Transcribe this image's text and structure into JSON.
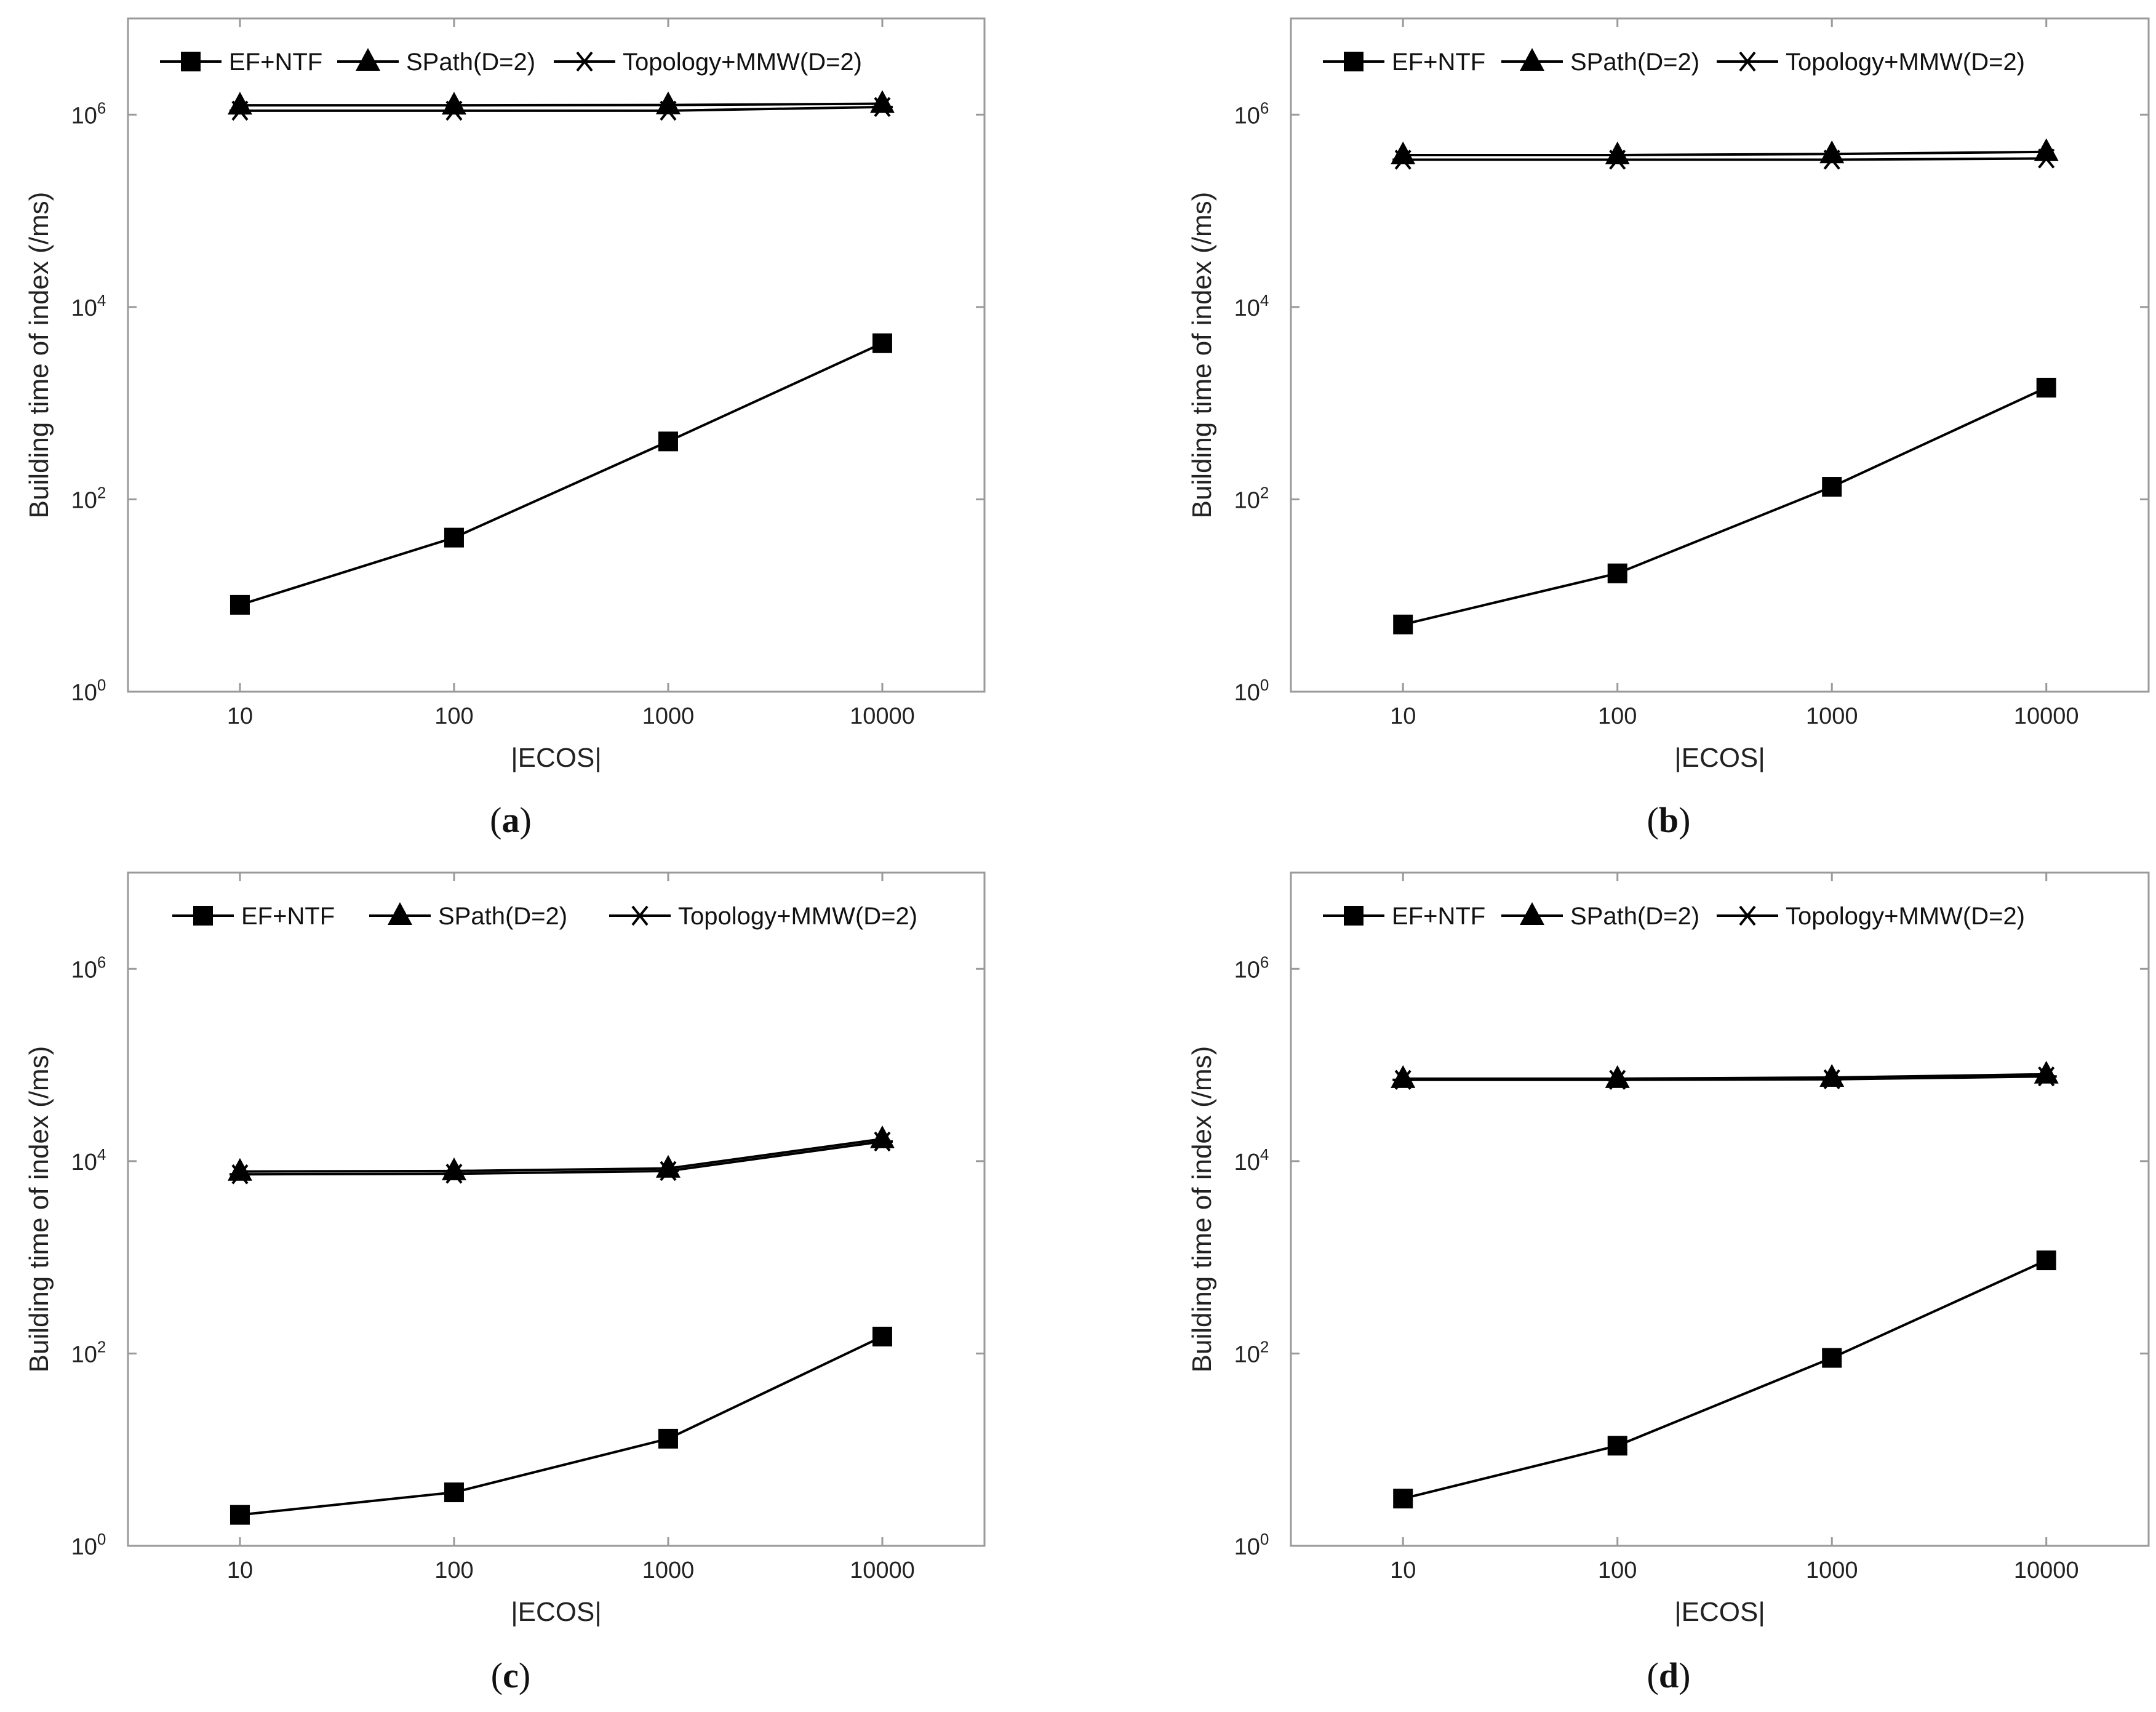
{
  "figure": {
    "accent_color": "#000000",
    "frame_color": "#9a9a9a"
  },
  "chart_data": [
    {
      "panel": "a",
      "type": "line",
      "xscale": "log",
      "yscale": "log",
      "categories": [
        "10",
        "100",
        "1000",
        "10000"
      ],
      "x": [
        10,
        100,
        1000,
        10000
      ],
      "xlim": [
        3,
        30000
      ],
      "ylim": [
        1,
        10000000
      ],
      "xlabel": "|ECOS|",
      "ylabel": "Building time of index (/ms)",
      "ytick_base": "10",
      "ytick_exponents": [
        "0",
        "2",
        "4",
        "6"
      ],
      "legend_position": "top",
      "series": [
        {
          "name": "EF+NTF",
          "marker": "square",
          "values": [
            8,
            40,
            400,
            4200
          ]
        },
        {
          "name": "SPath(D=2)",
          "marker": "triangle",
          "values": [
            1250000,
            1250000,
            1260000,
            1300000
          ]
        },
        {
          "name": "Topology+MMW(D=2)",
          "marker": "star",
          "values": [
            1100000,
            1100000,
            1100000,
            1200000
          ]
        }
      ],
      "caption_open": "(",
      "caption_letter": "a",
      "caption_close": ")"
    },
    {
      "panel": "b",
      "type": "line",
      "xscale": "log",
      "yscale": "log",
      "categories": [
        "10",
        "100",
        "1000",
        "10000"
      ],
      "x": [
        10,
        100,
        1000,
        10000
      ],
      "xlim": [
        3,
        30000
      ],
      "ylim": [
        1,
        10000000
      ],
      "xlabel": "|ECOS|",
      "ylabel": "Building time of index (/ms)",
      "ytick_base": "10",
      "ytick_exponents": [
        "0",
        "2",
        "4",
        "6"
      ],
      "legend_position": "top",
      "series": [
        {
          "name": "EF+NTF",
          "marker": "square",
          "values": [
            5,
            17,
            135,
            1450
          ]
        },
        {
          "name": "SPath(D=2)",
          "marker": "triangle",
          "values": [
            380000,
            380000,
            390000,
            410000
          ]
        },
        {
          "name": "Topology+MMW(D=2)",
          "marker": "star",
          "values": [
            340000,
            340000,
            340000,
            350000
          ]
        }
      ],
      "caption_open": "(",
      "caption_letter": "b",
      "caption_close": ")"
    },
    {
      "panel": "c",
      "type": "line",
      "xscale": "log",
      "yscale": "log",
      "categories": [
        "10",
        "100",
        "1000",
        "10000"
      ],
      "x": [
        10,
        100,
        1000,
        10000
      ],
      "xlim": [
        3,
        30000
      ],
      "ylim": [
        1,
        10000000
      ],
      "xlabel": "|ECOS|",
      "ylabel": "Building time of index (/ms)",
      "ytick_base": "10",
      "ytick_exponents": [
        "0",
        "2",
        "4",
        "6"
      ],
      "legend_position": "top",
      "series": [
        {
          "name": "EF+NTF",
          "marker": "square",
          "values": [
            2.1,
            3.6,
            13,
            150
          ]
        },
        {
          "name": "SPath(D=2)",
          "marker": "triangle",
          "values": [
            7800,
            7900,
            8400,
            17000
          ]
        },
        {
          "name": "Topology+MMW(D=2)",
          "marker": "star",
          "values": [
            7300,
            7400,
            7900,
            16000
          ]
        }
      ],
      "caption_open": "(",
      "caption_letter": "c",
      "caption_close": ")"
    },
    {
      "panel": "d",
      "type": "line",
      "xscale": "log",
      "yscale": "log",
      "categories": [
        "10",
        "100",
        "1000",
        "10000"
      ],
      "x": [
        10,
        100,
        1000,
        10000
      ],
      "xlim": [
        3,
        30000
      ],
      "ylim": [
        1,
        10000000
      ],
      "xlabel": "|ECOS|",
      "ylabel": "Building time of index (/ms)",
      "ytick_base": "10",
      "ytick_exponents": [
        "0",
        "2",
        "4",
        "6"
      ],
      "legend_position": "top",
      "series": [
        {
          "name": "EF+NTF",
          "marker": "square",
          "values": [
            3.1,
            11,
            90,
            930
          ]
        },
        {
          "name": "SPath(D=2)",
          "marker": "triangle",
          "values": [
            72000,
            72000,
            74000,
            80000
          ]
        },
        {
          "name": "Topology+MMW(D=2)",
          "marker": "star",
          "values": [
            70000,
            70000,
            71000,
            76000
          ]
        }
      ],
      "caption_open": "(",
      "caption_letter": "d",
      "caption_close": ")"
    }
  ]
}
